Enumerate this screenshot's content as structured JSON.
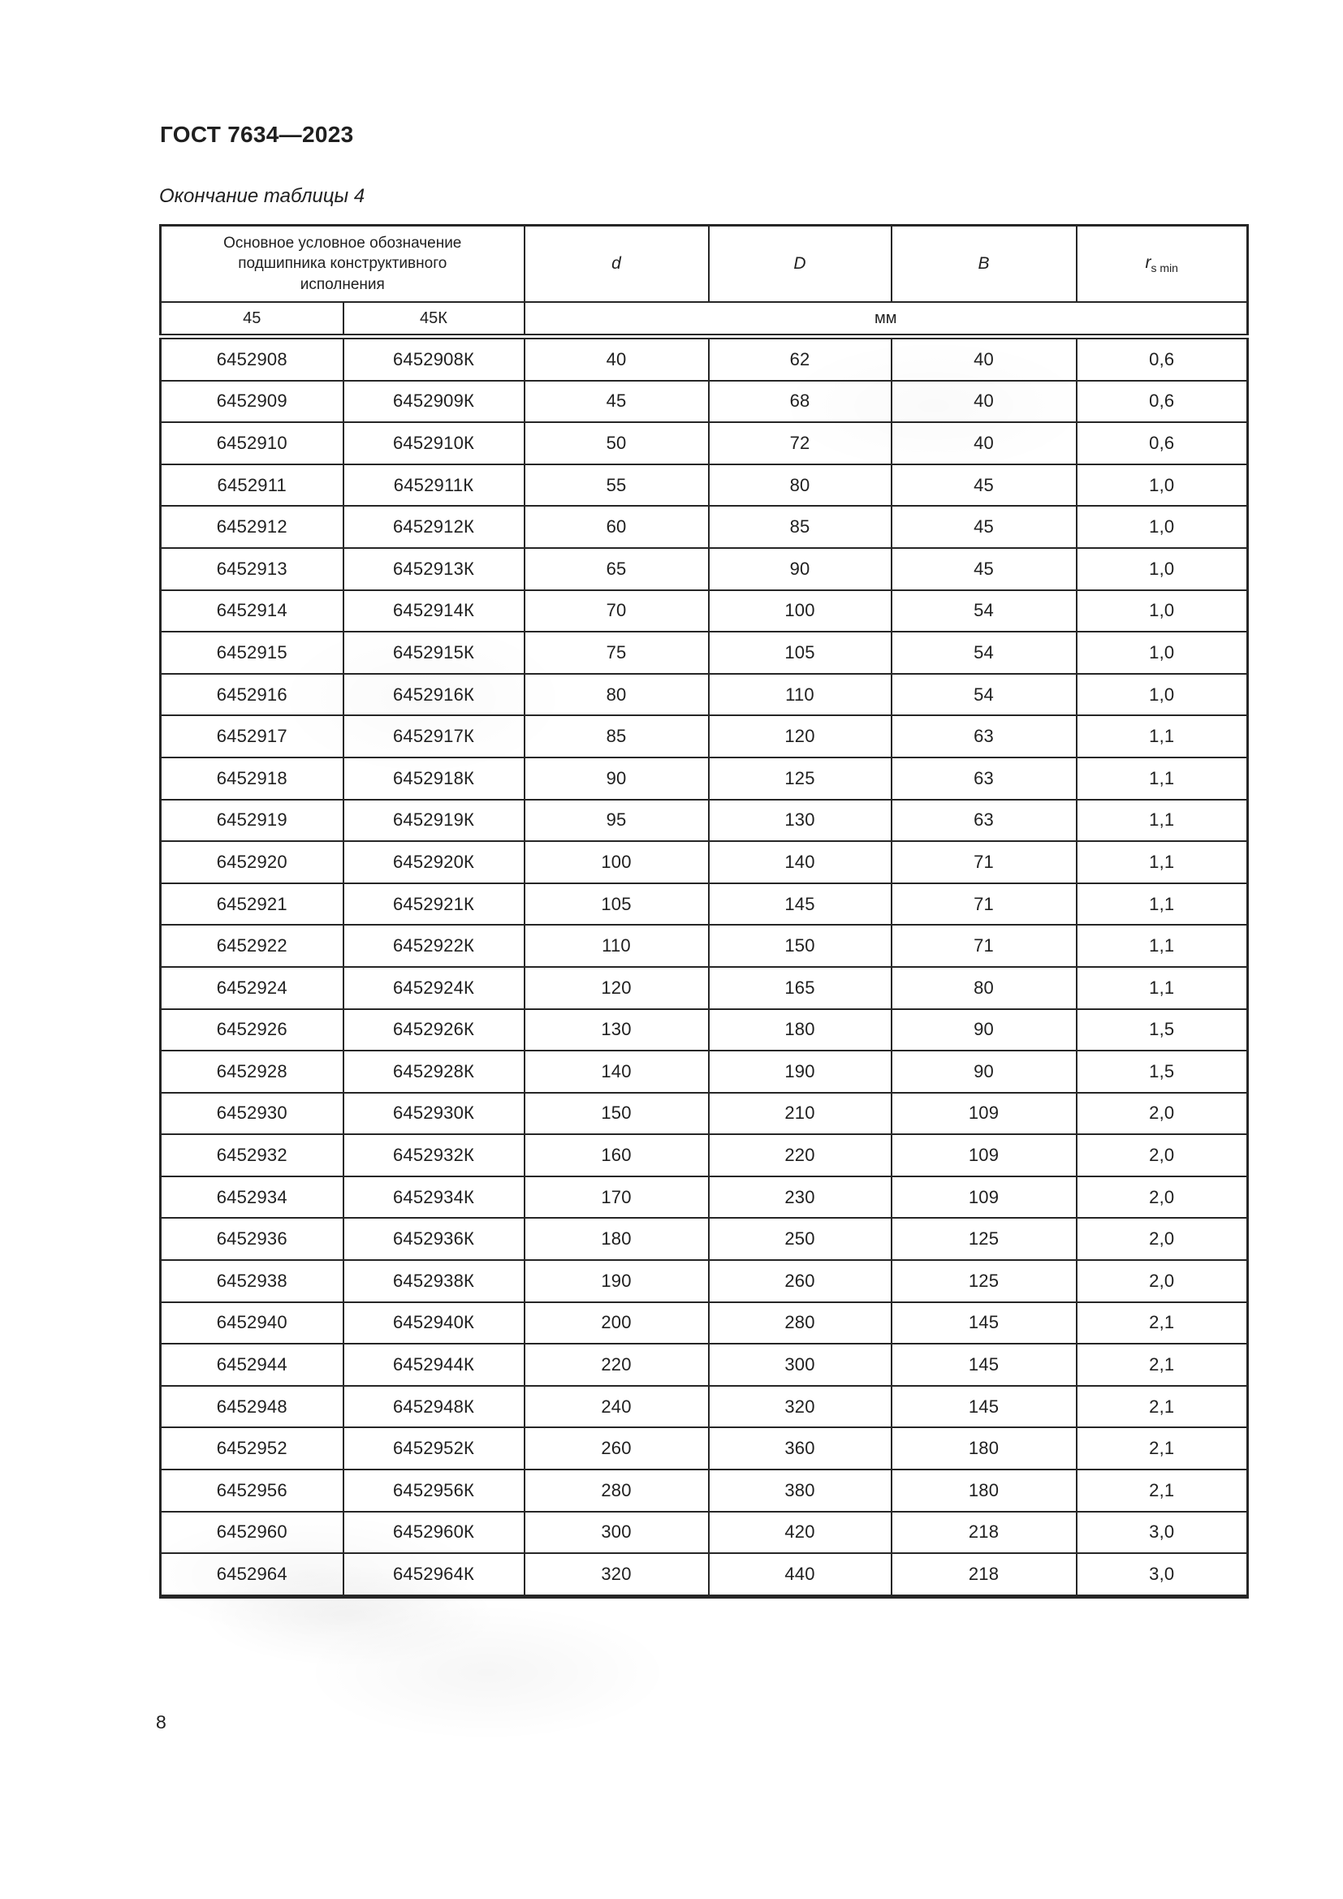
{
  "page": {
    "standard_title": "ГОСТ 7634—2023",
    "table_caption": "Окончание таблицы 4",
    "page_number": "8"
  },
  "table": {
    "header": {
      "designation_group": "Основное условное обозначение подшипника конструктивного исполнения",
      "col_d": "d",
      "col_D": "D",
      "col_B": "B",
      "r_symbol": "r",
      "r_subscript": "s min",
      "sub_45": "45",
      "sub_45k": "45К",
      "unit": "мм"
    },
    "rows": [
      [
        "6452908",
        "6452908К",
        "40",
        "62",
        "40",
        "0,6"
      ],
      [
        "6452909",
        "6452909К",
        "45",
        "68",
        "40",
        "0,6"
      ],
      [
        "6452910",
        "6452910К",
        "50",
        "72",
        "40",
        "0,6"
      ],
      [
        "6452911",
        "6452911К",
        "55",
        "80",
        "45",
        "1,0"
      ],
      [
        "6452912",
        "6452912К",
        "60",
        "85",
        "45",
        "1,0"
      ],
      [
        "6452913",
        "6452913К",
        "65",
        "90",
        "45",
        "1,0"
      ],
      [
        "6452914",
        "6452914К",
        "70",
        "100",
        "54",
        "1,0"
      ],
      [
        "6452915",
        "6452915К",
        "75",
        "105",
        "54",
        "1,0"
      ],
      [
        "6452916",
        "6452916К",
        "80",
        "110",
        "54",
        "1,0"
      ],
      [
        "6452917",
        "6452917К",
        "85",
        "120",
        "63",
        "1,1"
      ],
      [
        "6452918",
        "6452918К",
        "90",
        "125",
        "63",
        "1,1"
      ],
      [
        "6452919",
        "6452919К",
        "95",
        "130",
        "63",
        "1,1"
      ],
      [
        "6452920",
        "6452920К",
        "100",
        "140",
        "71",
        "1,1"
      ],
      [
        "6452921",
        "6452921К",
        "105",
        "145",
        "71",
        "1,1"
      ],
      [
        "6452922",
        "6452922К",
        "110",
        "150",
        "71",
        "1,1"
      ],
      [
        "6452924",
        "6452924К",
        "120",
        "165",
        "80",
        "1,1"
      ],
      [
        "6452926",
        "6452926К",
        "130",
        "180",
        "90",
        "1,5"
      ],
      [
        "6452928",
        "6452928К",
        "140",
        "190",
        "90",
        "1,5"
      ],
      [
        "6452930",
        "6452930К",
        "150",
        "210",
        "109",
        "2,0"
      ],
      [
        "6452932",
        "6452932К",
        "160",
        "220",
        "109",
        "2,0"
      ],
      [
        "6452934",
        "6452934К",
        "170",
        "230",
        "109",
        "2,0"
      ],
      [
        "6452936",
        "6452936К",
        "180",
        "250",
        "125",
        "2,0"
      ],
      [
        "6452938",
        "6452938К",
        "190",
        "260",
        "125",
        "2,0"
      ],
      [
        "6452940",
        "6452940К",
        "200",
        "280",
        "145",
        "2,1"
      ],
      [
        "6452944",
        "6452944К",
        "220",
        "300",
        "145",
        "2,1"
      ],
      [
        "6452948",
        "6452948К",
        "240",
        "320",
        "145",
        "2,1"
      ],
      [
        "6452952",
        "6452952К",
        "260",
        "360",
        "180",
        "2,1"
      ],
      [
        "6452956",
        "6452956К",
        "280",
        "380",
        "180",
        "2,1"
      ],
      [
        "6452960",
        "6452960К",
        "300",
        "420",
        "218",
        "3,0"
      ],
      [
        "6452964",
        "6452964К",
        "320",
        "440",
        "218",
        "3,0"
      ]
    ]
  }
}
